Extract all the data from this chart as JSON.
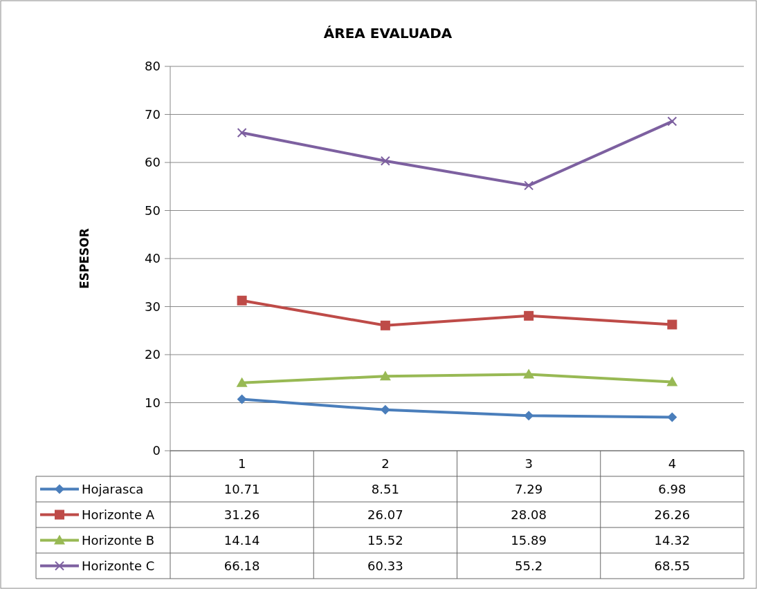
{
  "chart_data": {
    "type": "line",
    "title": "ÁREA EVALUADA",
    "ylabel": "ESPESOR",
    "categories": [
      "1",
      "2",
      "3",
      "4"
    ],
    "series": [
      {
        "name": "Hojarasca",
        "color": "#4a7ebb",
        "marker": "diamond",
        "values": [
          10.71,
          8.51,
          7.29,
          6.98
        ]
      },
      {
        "name": "Horizonte A",
        "color": "#be4b48",
        "marker": "square",
        "values": [
          31.26,
          26.07,
          28.08,
          26.26
        ]
      },
      {
        "name": "Horizonte B",
        "color": "#98b954",
        "marker": "triangle",
        "values": [
          14.14,
          15.52,
          15.89,
          14.32
        ]
      },
      {
        "name": "Horizonte C",
        "color": "#7d60a0",
        "marker": "cross",
        "values": [
          66.18,
          60.33,
          55.2,
          68.55
        ]
      }
    ],
    "ylim": [
      0,
      80
    ],
    "yticks": [
      0,
      10,
      20,
      30,
      40,
      50,
      60,
      70,
      80
    ],
    "grid": "y",
    "legend": "bottom",
    "data_labels": true
  }
}
